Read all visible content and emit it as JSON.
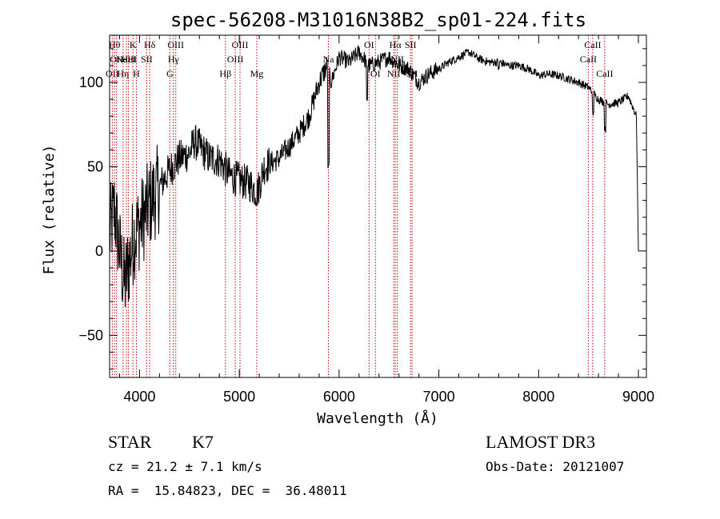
{
  "chart_data": {
    "type": "line",
    "title": "spec-56208-M31016N38B2_sp01-224.fits",
    "xlabel": "Wavelength (Å)",
    "ylabel": "Flux (relative)",
    "xlim": [
      3700,
      9080
    ],
    "ylim": [
      -75,
      128
    ],
    "x_ticks": [
      4000,
      5000,
      6000,
      7000,
      8000,
      9000
    ],
    "x_tick_labels": [
      "4000",
      "5000",
      "6000",
      "7000",
      "8000",
      "9000"
    ],
    "y_ticks": [
      -50,
      0,
      50,
      100
    ],
    "y_tick_labels": [
      "−50",
      "0",
      "50",
      "100"
    ],
    "spectrum_anchors": [
      [
        3700,
        10
      ],
      [
        3750,
        25
      ],
      [
        3800,
        0
      ],
      [
        3850,
        -20
      ],
      [
        3900,
        -5
      ],
      [
        3950,
        10
      ],
      [
        4000,
        15
      ],
      [
        4100,
        28
      ],
      [
        4200,
        38
      ],
      [
        4300,
        48
      ],
      [
        4400,
        55
      ],
      [
        4500,
        58
      ],
      [
        4550,
        65
      ],
      [
        4600,
        62
      ],
      [
        4700,
        55
      ],
      [
        4800,
        54
      ],
      [
        4900,
        45
      ],
      [
        5000,
        42
      ],
      [
        5100,
        40
      ],
      [
        5180,
        35
      ],
      [
        5250,
        50
      ],
      [
        5400,
        55
      ],
      [
        5500,
        62
      ],
      [
        5600,
        70
      ],
      [
        5700,
        80
      ],
      [
        5800,
        100
      ],
      [
        5880,
        110
      ],
      [
        5920,
        100
      ],
      [
        6000,
        115
      ],
      [
        6100,
        112
      ],
      [
        6200,
        118
      ],
      [
        6300,
        110
      ],
      [
        6400,
        112
      ],
      [
        6500,
        115
      ],
      [
        6600,
        110
      ],
      [
        6700,
        108
      ],
      [
        6800,
        100
      ],
      [
        6900,
        105
      ],
      [
        7000,
        108
      ],
      [
        7100,
        112
      ],
      [
        7200,
        115
      ],
      [
        7300,
        118
      ],
      [
        7400,
        114
      ],
      [
        7500,
        112
      ],
      [
        7600,
        112
      ],
      [
        7700,
        110
      ],
      [
        7800,
        110
      ],
      [
        7900,
        108
      ],
      [
        8000,
        104
      ],
      [
        8100,
        105
      ],
      [
        8200,
        104
      ],
      [
        8300,
        102
      ],
      [
        8400,
        100
      ],
      [
        8500,
        97
      ],
      [
        8600,
        90
      ],
      [
        8700,
        87
      ],
      [
        8800,
        88
      ],
      [
        8900,
        92
      ],
      [
        8980,
        80
      ],
      [
        9000,
        0
      ]
    ],
    "spectrum_dips": [
      [
        5893,
        50
      ],
      [
        6280,
        90
      ],
      [
        7600,
        108
      ],
      [
        8545,
        82
      ],
      [
        8665,
        72
      ]
    ],
    "spectral_lines": [
      {
        "wavelength": 3727,
        "label": "OII",
        "tier": 2
      },
      {
        "wavelength": 3750,
        "label": "Hθ",
        "tier": 0
      },
      {
        "wavelength": 3770,
        "label": "OII",
        "tier": 1
      },
      {
        "wavelength": 3835,
        "label": "Hη",
        "tier": 2
      },
      {
        "wavelength": 3869,
        "label": "NeIII",
        "tier": 1
      },
      {
        "wavelength": 3889,
        "label": "HeI",
        "tier": 1
      },
      {
        "wavelength": 3934,
        "label": "K",
        "tier": 0
      },
      {
        "wavelength": 3968,
        "label": "H",
        "tier": 2
      },
      {
        "wavelength": 4072,
        "label": "SII",
        "tier": 1
      },
      {
        "wavelength": 4102,
        "label": "Hδ",
        "tier": 0
      },
      {
        "wavelength": 4304,
        "label": "G",
        "tier": 2
      },
      {
        "wavelength": 4340,
        "label": "Hγ",
        "tier": 1
      },
      {
        "wavelength": 4363,
        "label": "OIII",
        "tier": 0
      },
      {
        "wavelength": 4861,
        "label": "Hβ",
        "tier": 2
      },
      {
        "wavelength": 4959,
        "label": "OIII",
        "tier": 1
      },
      {
        "wavelength": 5007,
        "label": "OIII",
        "tier": 0
      },
      {
        "wavelength": 5175,
        "label": "Mg",
        "tier": 2
      },
      {
        "wavelength": 5893,
        "label": "Na",
        "tier": 1
      },
      {
        "wavelength": 6300,
        "label": "OI",
        "tier": 0
      },
      {
        "wavelength": 6364,
        "label": "OI",
        "tier": 2
      },
      {
        "wavelength": 6548,
        "label": "NII",
        "tier": 2
      },
      {
        "wavelength": 6563,
        "label": "Hα",
        "tier": 0
      },
      {
        "wavelength": 6583,
        "label": "NII",
        "tier": 1
      },
      {
        "wavelength": 6716,
        "label": "SII",
        "tier": 0
      },
      {
        "wavelength": 6731,
        "label": "SII",
        "tier": 2
      },
      {
        "wavelength": 8498,
        "label": "CaII",
        "tier": 1
      },
      {
        "wavelength": 8542,
        "label": "CaII",
        "tier": 0
      },
      {
        "wavelength": 8662,
        "label": "CaII",
        "tier": 2
      }
    ],
    "colors": {
      "spectrum": "#000000",
      "line_markers": "#cc0000",
      "axes": "#000000"
    }
  },
  "info": {
    "object_class": "STAR",
    "subclass": "K7",
    "redshift": "cz = 21.2 ± 7.1 km/s",
    "coords": "RA =  15.84823, DEC =  36.48011",
    "survey": "LAMOST DR3",
    "obs_date": "Obs-Date: 20121007"
  }
}
